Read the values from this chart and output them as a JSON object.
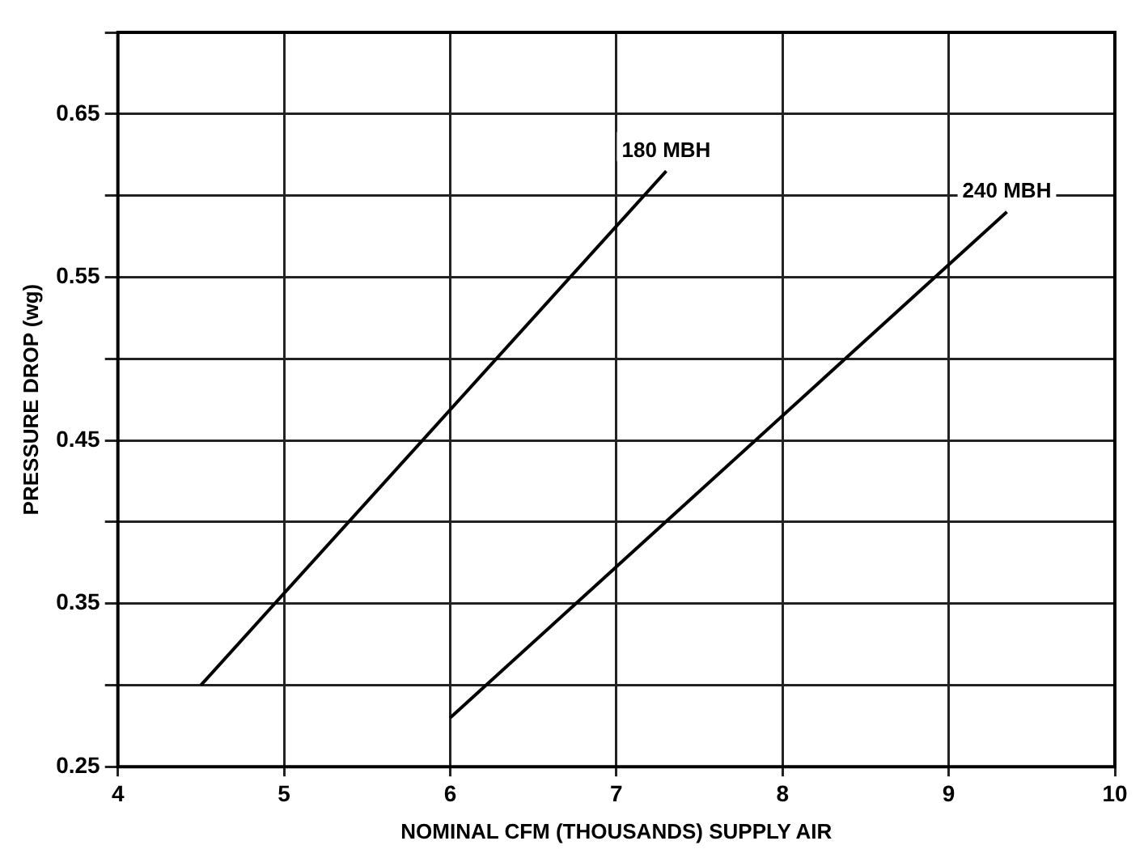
{
  "chart_data": {
    "type": "line",
    "xlabel": "NOMINAL CFM (THOUSANDS) SUPPLY AIR",
    "ylabel": "PRESSURE DROP (wg)",
    "series": [
      {
        "name": "180 MBH",
        "color": "#000000",
        "x": [
          4.5,
          7.3
        ],
        "values": [
          0.3,
          0.615
        ]
      },
      {
        "name": "240 MBH",
        "color": "#000000",
        "x": [
          6.0,
          9.35
        ],
        "values": [
          0.28,
          0.59
        ]
      }
    ],
    "xlim": [
      4,
      10
    ],
    "xticks": [
      4,
      5,
      6,
      7,
      8,
      9,
      10
    ],
    "ylim": [
      0.25,
      0.7
    ],
    "yticks": [
      0.25,
      {
        "value": 0.3,
        "label": null
      },
      0.35,
      {
        "value": 0.4,
        "label": null
      },
      0.45,
      {
        "value": 0.5,
        "label": null
      },
      0.55,
      {
        "value": 0.6,
        "label": null
      },
      0.65,
      {
        "value": 0.7,
        "label": null
      }
    ],
    "grid": true,
    "legend": false,
    "marker": "none",
    "line_style": "solid"
  }
}
